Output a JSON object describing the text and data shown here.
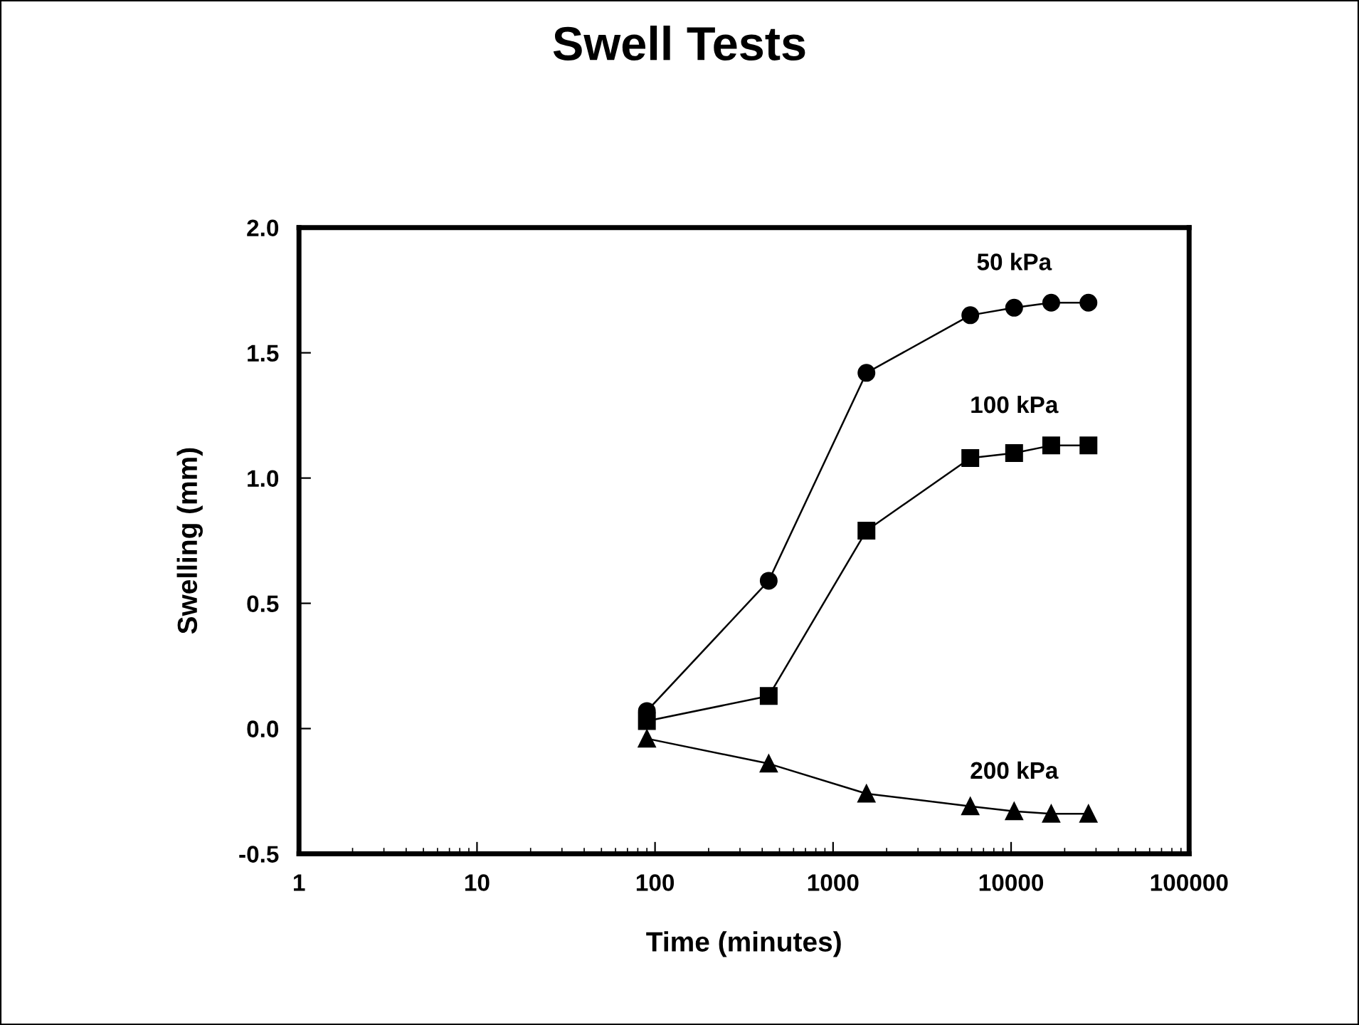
{
  "chart_data": {
    "type": "line",
    "title": "Swell Tests",
    "xlabel": "Time (minutes)",
    "ylabel": "Swelling (mm)",
    "log": "x",
    "grid": false,
    "legend": false,
    "xlim": [
      1,
      100000
    ],
    "xticks": [
      1,
      10,
      100,
      1000,
      10000,
      100000
    ],
    "ylim": [
      -0.5,
      2.0
    ],
    "yticks": [
      {
        "value": -0.5,
        "label": "-0.5"
      },
      {
        "value": 0.0,
        "label": "0.0"
      },
      {
        "value": 0.5,
        "label": "0.5"
      },
      {
        "value": 1.0,
        "label": "1.0"
      },
      {
        "value": 1.5,
        "label": "1.5"
      },
      {
        "value": 2.0,
        "label": "2.0"
      }
    ],
    "x": [
      90,
      435,
      1540,
      5900,
      10400,
      16800,
      27200
    ],
    "series": [
      {
        "name": "50 kPa",
        "color": "#000000",
        "marker": "circle",
        "values": [
          0.07,
          0.59,
          1.42,
          1.65,
          1.68,
          1.7,
          1.7
        ]
      },
      {
        "name": "100 kPa",
        "color": "#000000",
        "marker": "square",
        "values": [
          0.03,
          0.13,
          0.79,
          1.08,
          1.1,
          1.13,
          1.13
        ]
      },
      {
        "name": "200 kPa",
        "color": "#000000",
        "marker": "triangle",
        "values": [
          -0.04,
          -0.14,
          -0.26,
          -0.31,
          -0.33,
          -0.34,
          -0.34
        ]
      }
    ]
  }
}
